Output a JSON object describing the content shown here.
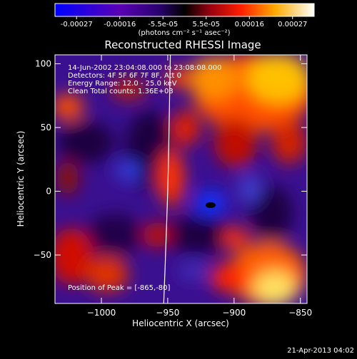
{
  "colorbar": {
    "ticks": [
      "-0.00027",
      "-0.00016",
      "-5.5e-05",
      "5.5e-05",
      "0.00016",
      "0.00027"
    ],
    "unit_label": "(photons cm⁻² s⁻¹ asec⁻²)"
  },
  "chart_data": {
    "type": "heatmap",
    "title": "Reconstructed RHESSI Image",
    "xlabel": "Heliocentric X (arcsec)",
    "ylabel": "Heliocentric Y (arcsec)",
    "xlim": [
      -1035,
      -845
    ],
    "ylim": [
      -88,
      107
    ],
    "x_ticks": [
      -1000,
      -950,
      -900,
      -850
    ],
    "y_ticks": [
      -50,
      0,
      50,
      100
    ],
    "x_tick_labels": [
      "−1000",
      "−950",
      "−900",
      "−850"
    ],
    "y_tick_labels": [
      "−50",
      "0",
      "50",
      "100"
    ],
    "value_range": [
      -0.00027,
      0.00027
    ],
    "limb_curve": [
      [
        -948,
        107
      ],
      [
        -948.5,
        80
      ],
      [
        -949,
        50
      ],
      [
        -949.5,
        20
      ],
      [
        -950,
        0
      ],
      [
        -951,
        -30
      ],
      [
        -952,
        -60
      ],
      [
        -953,
        -88
      ]
    ],
    "peak": [
      -865,
      -80
    ],
    "annotations": [
      "14-Jun-2002 23:04:08.000 to 23:08:08.000",
      "Detectors: 4F 5F 6F 7F 8F, Att 0",
      "Energy Range: 12.0 - 25.0 keV",
      "Clean    Total counts: 1.36E+03"
    ],
    "peak_label": "Position of Peak = [-865,-80]",
    "grid": false
  },
  "timestamp": "21-Apr-2013 04:02"
}
